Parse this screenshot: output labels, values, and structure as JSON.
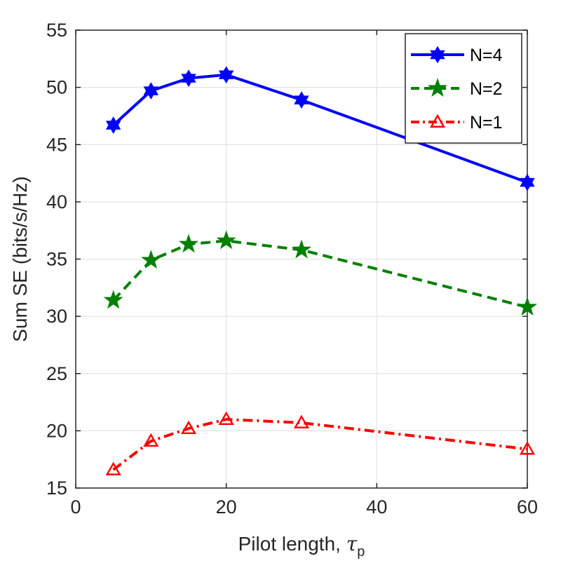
{
  "chart_data": {
    "type": "line",
    "title": "",
    "xlabel": "Pilot length, ",
    "xlabel_symbol": "τ",
    "xlabel_subscript": "p",
    "ylabel": "Sum SE (bits/s/Hz)",
    "xlim": [
      0,
      60
    ],
    "ylim": [
      15,
      55
    ],
    "xticks": [
      0,
      20,
      40,
      60
    ],
    "yticks": [
      15,
      20,
      25,
      30,
      35,
      40,
      45,
      50,
      55
    ],
    "grid": true,
    "legend_position": "top-right",
    "x": [
      5,
      10,
      15,
      20,
      30,
      60
    ],
    "series": [
      {
        "name": "N=4",
        "values": [
          46.7,
          49.7,
          50.8,
          51.1,
          48.9,
          41.7
        ],
        "color": "#0000ff",
        "dash": "solid",
        "marker": "hexagram"
      },
      {
        "name": "N=2",
        "values": [
          31.4,
          34.9,
          36.3,
          36.6,
          35.8,
          30.8
        ],
        "color": "#008000",
        "dash": "dashed",
        "marker": "pentagram"
      },
      {
        "name": "N=1",
        "values": [
          16.6,
          19.1,
          20.2,
          21.0,
          20.7,
          18.4
        ],
        "color": "#ff0000",
        "dash": "dashdot",
        "marker": "triangle"
      }
    ]
  }
}
